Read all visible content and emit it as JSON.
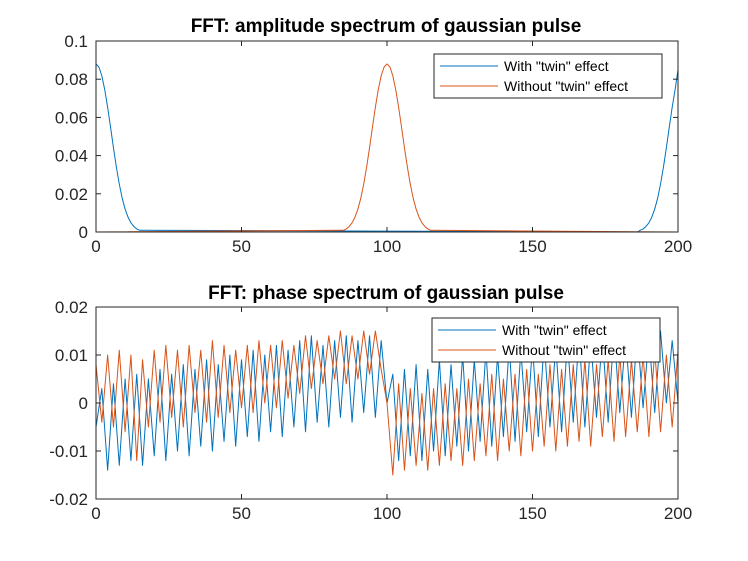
{
  "chart_data": [
    {
      "type": "line",
      "title": "FFT: amplitude spectrum of gaussian pulse",
      "xlabel": "",
      "ylabel": "",
      "xlim": [
        0,
        200
      ],
      "ylim": [
        0,
        0.1
      ],
      "xticks": [
        0,
        50,
        100,
        150,
        200
      ],
      "xtick_labels": [
        "0",
        "50",
        "100",
        "150",
        "200"
      ],
      "yticks": [
        0,
        0.02,
        0.04,
        0.06,
        0.08,
        0.1
      ],
      "ytick_labels": [
        "0",
        "0.02",
        "0.04",
        "0.06",
        "0.08",
        "0.1"
      ],
      "grid": false,
      "legend_position": "top-right",
      "series": [
        {
          "name": "With \"twin\" effect",
          "color": "#0072BD",
          "x": [
            0,
            1,
            2,
            3,
            4,
            5,
            6,
            7,
            8,
            9,
            10,
            11,
            12,
            13,
            14,
            15,
            186,
            187,
            188,
            189,
            190,
            191,
            192,
            193,
            194,
            195,
            196,
            197,
            198,
            199,
            200
          ],
          "values": [
            0.088,
            0.0864,
            0.0818,
            0.0745,
            0.0653,
            0.0549,
            0.0441,
            0.034,
            0.0251,
            0.0177,
            0.012,
            0.0078,
            0.0048,
            0.0029,
            0.0016,
            0.0009,
            0.0,
            0.0009,
            0.0016,
            0.0029,
            0.0048,
            0.0078,
            0.012,
            0.0177,
            0.0251,
            0.034,
            0.0441,
            0.0549,
            0.0653,
            0.0745,
            0.085
          ]
        },
        {
          "name": "Without \"twin\" effect",
          "color": "#D95319",
          "x": [
            0,
            85,
            86,
            87,
            88,
            89,
            90,
            91,
            92,
            93,
            94,
            95,
            96,
            97,
            98,
            99,
            100,
            101,
            102,
            103,
            104,
            105,
            106,
            107,
            108,
            109,
            110,
            111,
            112,
            113,
            114,
            115,
            200
          ],
          "values": [
            0.0,
            0.0009,
            0.0016,
            0.0029,
            0.0048,
            0.0078,
            0.012,
            0.0177,
            0.0251,
            0.034,
            0.0441,
            0.0549,
            0.0653,
            0.0745,
            0.0818,
            0.0864,
            0.088,
            0.0864,
            0.0818,
            0.0745,
            0.0653,
            0.0549,
            0.0441,
            0.034,
            0.0251,
            0.0177,
            0.012,
            0.0078,
            0.0048,
            0.0029,
            0.0016,
            0.0009,
            0.0
          ]
        }
      ]
    },
    {
      "type": "line",
      "title": "FFT: phase spectrum of gaussian pulse",
      "xlabel": "",
      "ylabel": "",
      "xlim": [
        0,
        200
      ],
      "ylim": [
        -0.02,
        0.02
      ],
      "xticks": [
        0,
        50,
        100,
        150,
        200
      ],
      "xtick_labels": [
        "0",
        "50",
        "100",
        "150",
        "200"
      ],
      "yticks": [
        -0.02,
        -0.01,
        0,
        0.01,
        0.02
      ],
      "ytick_labels": [
        "-0.02",
        "-0.01",
        "0",
        "0.01",
        "0.02"
      ],
      "grid": false,
      "legend_position": "top-right",
      "series": [
        {
          "name": "With \"twin\" effect",
          "color": "#0072BD",
          "x": [
            0,
            2,
            4,
            6,
            8,
            10,
            12,
            14,
            16,
            18,
            20,
            22,
            24,
            26,
            28,
            30,
            32,
            34,
            36,
            38,
            40,
            42,
            44,
            46,
            48,
            50,
            52,
            54,
            56,
            58,
            60,
            62,
            64,
            66,
            68,
            70,
            72,
            74,
            76,
            78,
            80,
            82,
            84,
            86,
            88,
            90,
            92,
            94,
            96,
            98,
            100,
            102,
            104,
            106,
            108,
            110,
            112,
            114,
            116,
            118,
            120,
            122,
            124,
            126,
            128,
            130,
            132,
            134,
            136,
            138,
            140,
            142,
            144,
            146,
            148,
            150,
            152,
            154,
            156,
            158,
            160,
            162,
            164,
            166,
            168,
            170,
            172,
            174,
            176,
            178,
            180,
            182,
            184,
            186,
            188,
            190,
            192,
            194,
            196,
            198,
            200
          ],
          "values": [
            -0.005,
            0.003,
            -0.014,
            0.004,
            -0.013,
            0.005,
            -0.012,
            0.006,
            -0.013,
            0.005,
            -0.011,
            0.007,
            -0.012,
            0.006,
            -0.01,
            0.008,
            -0.011,
            0.007,
            -0.009,
            0.009,
            -0.01,
            0.008,
            -0.008,
            0.01,
            -0.009,
            0.009,
            -0.007,
            0.011,
            -0.008,
            0.01,
            -0.006,
            0.012,
            -0.007,
            0.011,
            -0.005,
            0.013,
            -0.006,
            0.014,
            -0.004,
            0.012,
            -0.005,
            0.013,
            -0.003,
            0.014,
            -0.004,
            0.013,
            -0.002,
            0.014,
            -0.003,
            0.013,
            0.0,
            0.006,
            -0.012,
            0.007,
            -0.011,
            0.008,
            -0.012,
            0.007,
            -0.01,
            0.009,
            -0.011,
            0.008,
            -0.009,
            0.01,
            -0.01,
            0.009,
            -0.008,
            0.011,
            -0.009,
            0.01,
            -0.007,
            0.012,
            -0.008,
            0.011,
            -0.006,
            0.012,
            -0.007,
            0.013,
            -0.005,
            0.012,
            -0.006,
            0.013,
            -0.004,
            0.014,
            -0.005,
            0.013,
            -0.003,
            0.014,
            -0.004,
            0.015,
            -0.002,
            0.014,
            -0.003,
            0.015,
            -0.001,
            0.014,
            -0.002,
            0.015,
            0.0,
            0.013,
            0.0
          ]
        },
        {
          "name": "Without \"twin\" effect",
          "color": "#D95319",
          "x": [
            0,
            2,
            4,
            6,
            8,
            10,
            12,
            14,
            16,
            18,
            20,
            22,
            24,
            26,
            28,
            30,
            32,
            34,
            36,
            38,
            40,
            42,
            44,
            46,
            48,
            50,
            52,
            54,
            56,
            58,
            60,
            62,
            64,
            66,
            68,
            70,
            72,
            74,
            76,
            78,
            80,
            82,
            84,
            86,
            88,
            90,
            92,
            94,
            96,
            98,
            100,
            102,
            104,
            106,
            108,
            110,
            112,
            114,
            116,
            118,
            120,
            122,
            124,
            126,
            128,
            130,
            132,
            134,
            136,
            138,
            140,
            142,
            144,
            146,
            148,
            150,
            152,
            154,
            156,
            158,
            160,
            162,
            164,
            166,
            168,
            170,
            172,
            174,
            176,
            178,
            180,
            182,
            184,
            186,
            188,
            190,
            192,
            194,
            196,
            198,
            200
          ],
          "values": [
            0.008,
            -0.004,
            0.01,
            -0.005,
            0.011,
            -0.006,
            0.01,
            -0.012,
            0.009,
            -0.005,
            0.011,
            -0.004,
            0.012,
            -0.003,
            0.011,
            -0.005,
            0.012,
            -0.002,
            0.011,
            -0.004,
            0.013,
            -0.003,
            0.012,
            -0.002,
            0.011,
            -0.001,
            0.012,
            -0.002,
            0.013,
            0.0,
            0.012,
            -0.001,
            0.013,
            0.001,
            0.012,
            0.002,
            0.014,
            0.003,
            0.013,
            0.004,
            0.014,
            0.005,
            0.015,
            0.004,
            0.014,
            0.005,
            0.015,
            0.006,
            0.015,
            0.007,
            0.0,
            -0.015,
            0.004,
            -0.014,
            0.003,
            -0.013,
            0.002,
            -0.014,
            0.003,
            -0.013,
            0.004,
            -0.012,
            0.003,
            -0.013,
            0.005,
            -0.012,
            0.004,
            -0.011,
            0.006,
            -0.012,
            0.005,
            -0.01,
            0.006,
            -0.011,
            0.007,
            -0.01,
            0.006,
            -0.009,
            0.008,
            -0.01,
            0.007,
            -0.009,
            0.008,
            -0.008,
            0.009,
            -0.009,
            0.008,
            -0.007,
            0.009,
            -0.008,
            0.01,
            -0.007,
            0.009,
            -0.006,
            0.01,
            -0.007,
            0.011,
            -0.006,
            0.01,
            -0.005,
            0.011
          ]
        }
      ]
    }
  ]
}
